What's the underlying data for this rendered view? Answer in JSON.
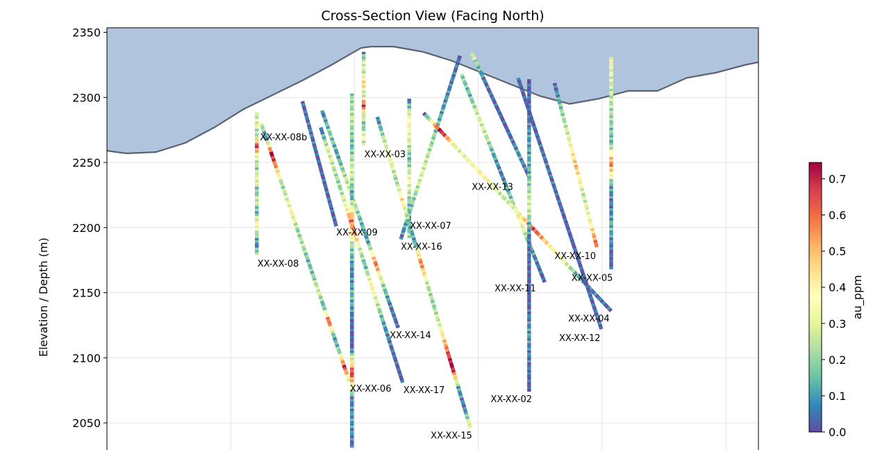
{
  "chart_data": {
    "type": "scatter",
    "title": "Cross-Section View (Facing North)",
    "xlabel": "",
    "ylabel": "Elevation / Depth (m)",
    "ylim": [
      2031,
      2354
    ],
    "xlim": [
      0,
      100
    ],
    "yticks": [
      "2350",
      "2300",
      "2250",
      "2200",
      "2150",
      "2100",
      "2050"
    ],
    "ytick_values": [
      2350,
      2300,
      2250,
      2200,
      2150,
      2100,
      2050
    ],
    "grid": true,
    "colorbar": {
      "label": "au_ppm",
      "min": 0.0,
      "max": 0.745,
      "ticks": [
        "0.0",
        "0.1",
        "0.2",
        "0.3",
        "0.4",
        "0.5",
        "0.6",
        "0.7"
      ],
      "tick_values": [
        0.0,
        0.1,
        0.2,
        0.3,
        0.4,
        0.5,
        0.6,
        0.7
      ],
      "colormap": "Spectral_r"
    },
    "topography": {
      "fill_color": "#b0c4de",
      "line_color": "#5a6370",
      "points": [
        [
          0,
          2259
        ],
        [
          3,
          2257
        ],
        [
          7.5,
          2258
        ],
        [
          12,
          2265
        ],
        [
          16.5,
          2277
        ],
        [
          21,
          2291
        ],
        [
          25.5,
          2302
        ],
        [
          30,
          2313
        ],
        [
          34.5,
          2325
        ],
        [
          39,
          2338
        ],
        [
          40.5,
          2339
        ],
        [
          44,
          2339
        ],
        [
          48.5,
          2335
        ],
        [
          53,
          2328
        ],
        [
          57.5,
          2319
        ],
        [
          62,
          2310
        ],
        [
          66.5,
          2301
        ],
        [
          71,
          2295
        ],
        [
          75.5,
          2299
        ],
        [
          80,
          2305
        ],
        [
          84.5,
          2305
        ],
        [
          89,
          2315
        ],
        [
          93.5,
          2319
        ],
        [
          98,
          2325
        ],
        [
          100,
          2327
        ]
      ]
    },
    "holes": [
      {
        "name": "XX-XX-08",
        "label_pos": [
          23.1,
          2170
        ],
        "x": [
          23.0,
          23.0
        ],
        "y": [
          2289,
          2179
        ],
        "au": [
          0.25,
          0.3,
          0.2,
          0.7,
          0.3,
          0.2,
          0.35,
          0.15,
          0.28,
          0.12,
          0.4,
          0.22,
          0.05,
          0.3
        ]
      },
      {
        "name": "XX-XX-08b",
        "label_pos": [
          23.5,
          2267
        ],
        "x": [
          23.6,
          37.2
        ],
        "y": [
          2281,
          2082
        ],
        "au": [
          0.3,
          0.05,
          0.75,
          0.5,
          0.2,
          0.3,
          0.35,
          0.2,
          0.25,
          0.15,
          0.18,
          0.3,
          0.12,
          0.65,
          0.1,
          0.2,
          0.7,
          0.15
        ]
      },
      {
        "name": "XX-XX-03",
        "label_pos": [
          39.5,
          2254
        ],
        "x": [
          39.4,
          39.4
        ],
        "y": [
          2335,
          2263
        ],
        "au": [
          0.1,
          0.3,
          0.25,
          0.5,
          0.2,
          0.7,
          0.3,
          0.15,
          0.35,
          0.2
        ]
      },
      {
        "name": "XX-XX-09",
        "label_pos": [
          35.2,
          2194
        ],
        "x": [
          30.0,
          35.2
        ],
        "y": [
          2297,
          2201
        ],
        "au": [
          0.02,
          0.05,
          0.0,
          0.03,
          0.01
        ]
      },
      {
        "name": "XX-XX-14",
        "label_pos": [
          43.4,
          2115
        ],
        "x": [
          33.0,
          44.7
        ],
        "y": [
          2290,
          2123
        ],
        "au": [
          0.05,
          0.2,
          0.1,
          0.25,
          0.3,
          0.15,
          0.1,
          0.6,
          0.2,
          0.05,
          0.02
        ]
      },
      {
        "name": "XX-XX-17",
        "label_pos": [
          45.5,
          2073
        ],
        "x": [
          32.8,
          45.4
        ],
        "y": [
          2277,
          2081
        ],
        "au": [
          0.02,
          0.3,
          0.25,
          0.2,
          0.35,
          0.7,
          0.3,
          0.15,
          0.4,
          0.25,
          0.1,
          0.05,
          0.02,
          0.0
        ]
      },
      {
        "name": "XX-XX-06",
        "label_pos": [
          37.3,
          2074
        ],
        "x": [
          37.6,
          37.6
        ],
        "y": [
          2303,
          2031
        ],
        "au": [
          0.2,
          0.25,
          0.15,
          0.3,
          0.1,
          0.6,
          0.2,
          0.05,
          0.15,
          0.02,
          0.0,
          0.7,
          0.05,
          0.1,
          0.02
        ]
      },
      {
        "name": "XX-XX-07",
        "label_pos": [
          46.5,
          2199
        ],
        "x": [
          46.4,
          46.4
        ],
        "y": [
          2299,
          2192
        ],
        "au": [
          0.05,
          0.4,
          0.3,
          0.15,
          0.35,
          0.2,
          0.1,
          0.25
        ]
      },
      {
        "name": "XX-XX-16",
        "label_pos": [
          45.1,
          2183
        ],
        "x": [
          45.1,
          54.2
        ],
        "y": [
          2191,
          2332
        ],
        "au": [
          0.05,
          0.15,
          0.2,
          0.3,
          0.25,
          0.2,
          0.12,
          0.08,
          0.05,
          0.02
        ]
      },
      {
        "name": "XX-XX-15",
        "label_pos": [
          49.7,
          2038
        ],
        "x": [
          41.5,
          55.8
        ],
        "y": [
          2285,
          2046
        ],
        "au": [
          0.05,
          0.25,
          0.35,
          0.2,
          0.45,
          0.15,
          0.1,
          0.6,
          0.25,
          0.2,
          0.3,
          0.55,
          0.8,
          0.1,
          0.05,
          0.4
        ]
      },
      {
        "name": "XX-XX-13",
        "label_pos": [
          56.0,
          2229
        ],
        "x": [
          56.0,
          64.9
        ],
        "y": [
          2334,
          2238
        ],
        "au": [
          0.3,
          0.05,
          0.02,
          0.0,
          0.1,
          0.02
        ]
      },
      {
        "name": "XX-XX-11",
        "label_pos": [
          59.5,
          2151
        ],
        "x": [
          54.4,
          67.2
        ],
        "y": [
          2318,
          2158
        ],
        "au": [
          0.2,
          0.15,
          0.3,
          0.25,
          0.1,
          0.05,
          0.2,
          0.4,
          0.15,
          0.05,
          0.0
        ]
      },
      {
        "name": "XX-XX-05",
        "label_pos": [
          71.3,
          2159
        ],
        "x": [
          48.6,
          77.4
        ],
        "y": [
          2288,
          2136
        ],
        "au": [
          0.02,
          0.75,
          0.3,
          0.35,
          0.4,
          0.25,
          0.35,
          0.65,
          0.4,
          0.3,
          0.1,
          0.05,
          0.02
        ]
      },
      {
        "name": "XX-XX-02",
        "label_pos": [
          58.9,
          2066
        ],
        "x": [
          64.8,
          64.8
        ],
        "y": [
          2314,
          2074
        ],
        "au": [
          0.0,
          0.05,
          0.1,
          0.15,
          0.3,
          0.05,
          0.02,
          0.0,
          0.1,
          0.05,
          0.0
        ]
      },
      {
        "name": "XX-XX-04",
        "label_pos": [
          70.8,
          2128
        ],
        "x": [
          63.1,
          75.9
        ],
        "y": [
          2315,
          2122
        ],
        "au": [
          0.02,
          0.0,
          0.05,
          0.02,
          0.0,
          0.01,
          0.03
        ]
      },
      {
        "name": "XX-XX-10",
        "label_pos": [
          68.7,
          2176
        ],
        "x": [
          68.7,
          75.2
        ],
        "y": [
          2311,
          2185
        ],
        "au": [
          0.02,
          0.2,
          0.3,
          0.5,
          0.25,
          0.35,
          0.65
        ]
      },
      {
        "name": "XX-XX-12",
        "label_pos": [
          69.4,
          2113
        ],
        "x": [
          77.4,
          77.4
        ],
        "y": [
          2331,
          2168
        ],
        "au": [
          0.35,
          0.3,
          0.25,
          0.2,
          0.15,
          0.6,
          0.1,
          0.05,
          0.15,
          0.02,
          0.0
        ]
      }
    ]
  }
}
